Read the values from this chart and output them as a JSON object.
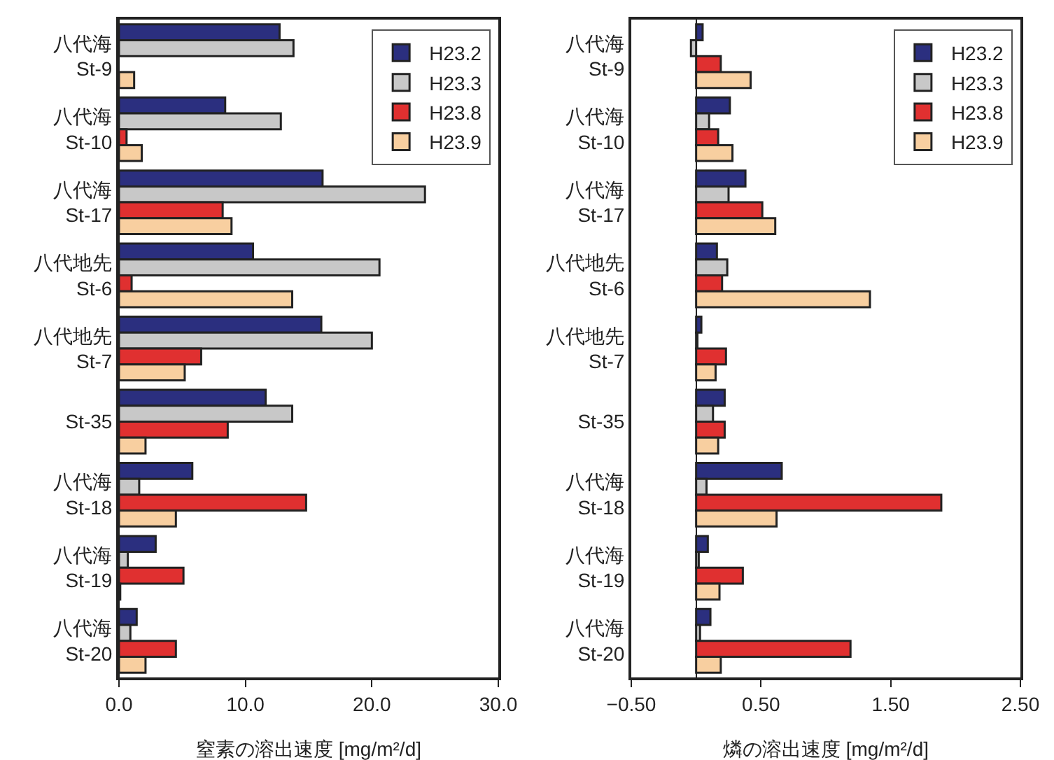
{
  "chart_data": [
    {
      "type": "bar",
      "orientation": "horizontal",
      "xlabel": "窒素の溶出速度 [mg/m²/d]",
      "categories": [
        "八代海\nSt-9",
        "八代海\nSt-10",
        "八代海\nSt-17",
        "八代地先\nSt-6",
        "八代地先\nSt-7",
        "St-35",
        "八代海\nSt-18",
        "八代海\nSt-19",
        "八代海\nSt-20"
      ],
      "xlim": [
        0,
        30
      ],
      "xticks": [
        {
          "value": 0,
          "label": "0.0"
        },
        {
          "value": 10,
          "label": "10.0"
        },
        {
          "value": 20,
          "label": "20.0"
        },
        {
          "value": 30,
          "label": "30.0"
        }
      ],
      "legend": "top right",
      "series": [
        {
          "name": "H23.2",
          "color": "#2b2f7f",
          "values": [
            12.7,
            8.4,
            16.1,
            10.6,
            16.0,
            11.6,
            5.8,
            2.9,
            1.4
          ]
        },
        {
          "name": "H23.3",
          "color": "#c8c8c8",
          "values": [
            13.8,
            12.8,
            24.2,
            20.6,
            20.0,
            13.7,
            1.6,
            0.7,
            0.9
          ]
        },
        {
          "name": "H23.8",
          "color": "#e03030",
          "values": [
            null,
            0.6,
            8.2,
            1.0,
            6.5,
            8.6,
            14.8,
            5.1,
            4.5
          ]
        },
        {
          "name": "H23.9",
          "color": "#f8cfa0",
          "values": [
            1.2,
            1.8,
            8.9,
            13.7,
            5.2,
            2.1,
            4.5,
            0.1,
            2.1
          ]
        }
      ]
    },
    {
      "type": "bar",
      "orientation": "horizontal",
      "xlabel": "燐の溶出速度 [mg/m²/d]",
      "categories": [
        "八代海\nSt-9",
        "八代海\nSt-10",
        "八代海\nSt-17",
        "八代地先\nSt-6",
        "八代地先\nSt-7",
        "St-35",
        "八代海\nSt-18",
        "八代海\nSt-19",
        "八代海\nSt-20"
      ],
      "xlim": [
        -0.5,
        2.5
      ],
      "xticks": [
        {
          "value": -0.5,
          "label": "−0.50"
        },
        {
          "value": 0.5,
          "label": "0.50"
        },
        {
          "value": 1.5,
          "label": "1.50"
        },
        {
          "value": 2.5,
          "label": "2.50"
        }
      ],
      "legend": "top right",
      "series": [
        {
          "name": "H23.2",
          "color": "#2b2f7f",
          "values": [
            0.05,
            0.26,
            0.38,
            0.16,
            0.04,
            0.22,
            0.66,
            0.09,
            0.11
          ]
        },
        {
          "name": "H23.3",
          "color": "#c8c8c8",
          "values": [
            -0.04,
            0.1,
            0.25,
            0.24,
            0.01,
            0.13,
            0.08,
            0.02,
            0.03
          ]
        },
        {
          "name": "H23.8",
          "color": "#e03030",
          "values": [
            0.19,
            0.17,
            0.51,
            0.2,
            0.23,
            0.22,
            1.89,
            0.36,
            1.19
          ]
        },
        {
          "name": "H23.9",
          "color": "#f8cfa0",
          "values": [
            0.42,
            0.28,
            0.61,
            1.34,
            0.15,
            0.17,
            0.62,
            0.18,
            0.19
          ]
        }
      ]
    }
  ]
}
